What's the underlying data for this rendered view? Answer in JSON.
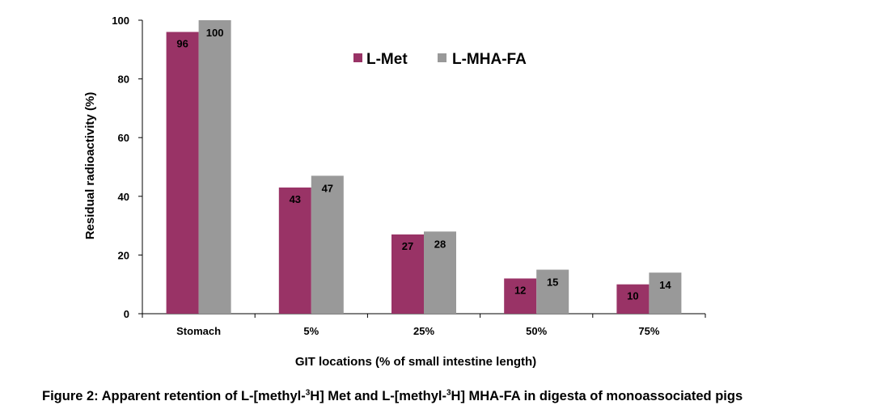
{
  "chart_data": {
    "type": "bar",
    "categories": [
      "Stomach",
      "5%",
      "25%",
      "50%",
      "75%"
    ],
    "series": [
      {
        "name": "L-Met",
        "values": [
          96,
          43,
          27,
          12,
          10
        ],
        "color": "#993366"
      },
      {
        "name": "L-MHA-FA",
        "values": [
          100,
          47,
          28,
          15,
          14
        ],
        "color": "#999999"
      }
    ],
    "xlabel": "GIT locations (% of small intestine length)",
    "ylabel": "Residual radioactivity (%)",
    "ylim": [
      0,
      100
    ],
    "yticks": [
      0,
      20,
      40,
      60,
      80,
      100
    ],
    "grid": false,
    "legend_position": "top-right"
  },
  "caption": {
    "part1": "Figure 2: Apparent retention of L-[methyl-",
    "sup1": "3",
    "part2": "H] Met and L-[methyl-",
    "sup2": "3",
    "part3": "H] MHA-FA in digesta of monoassociated pigs"
  }
}
